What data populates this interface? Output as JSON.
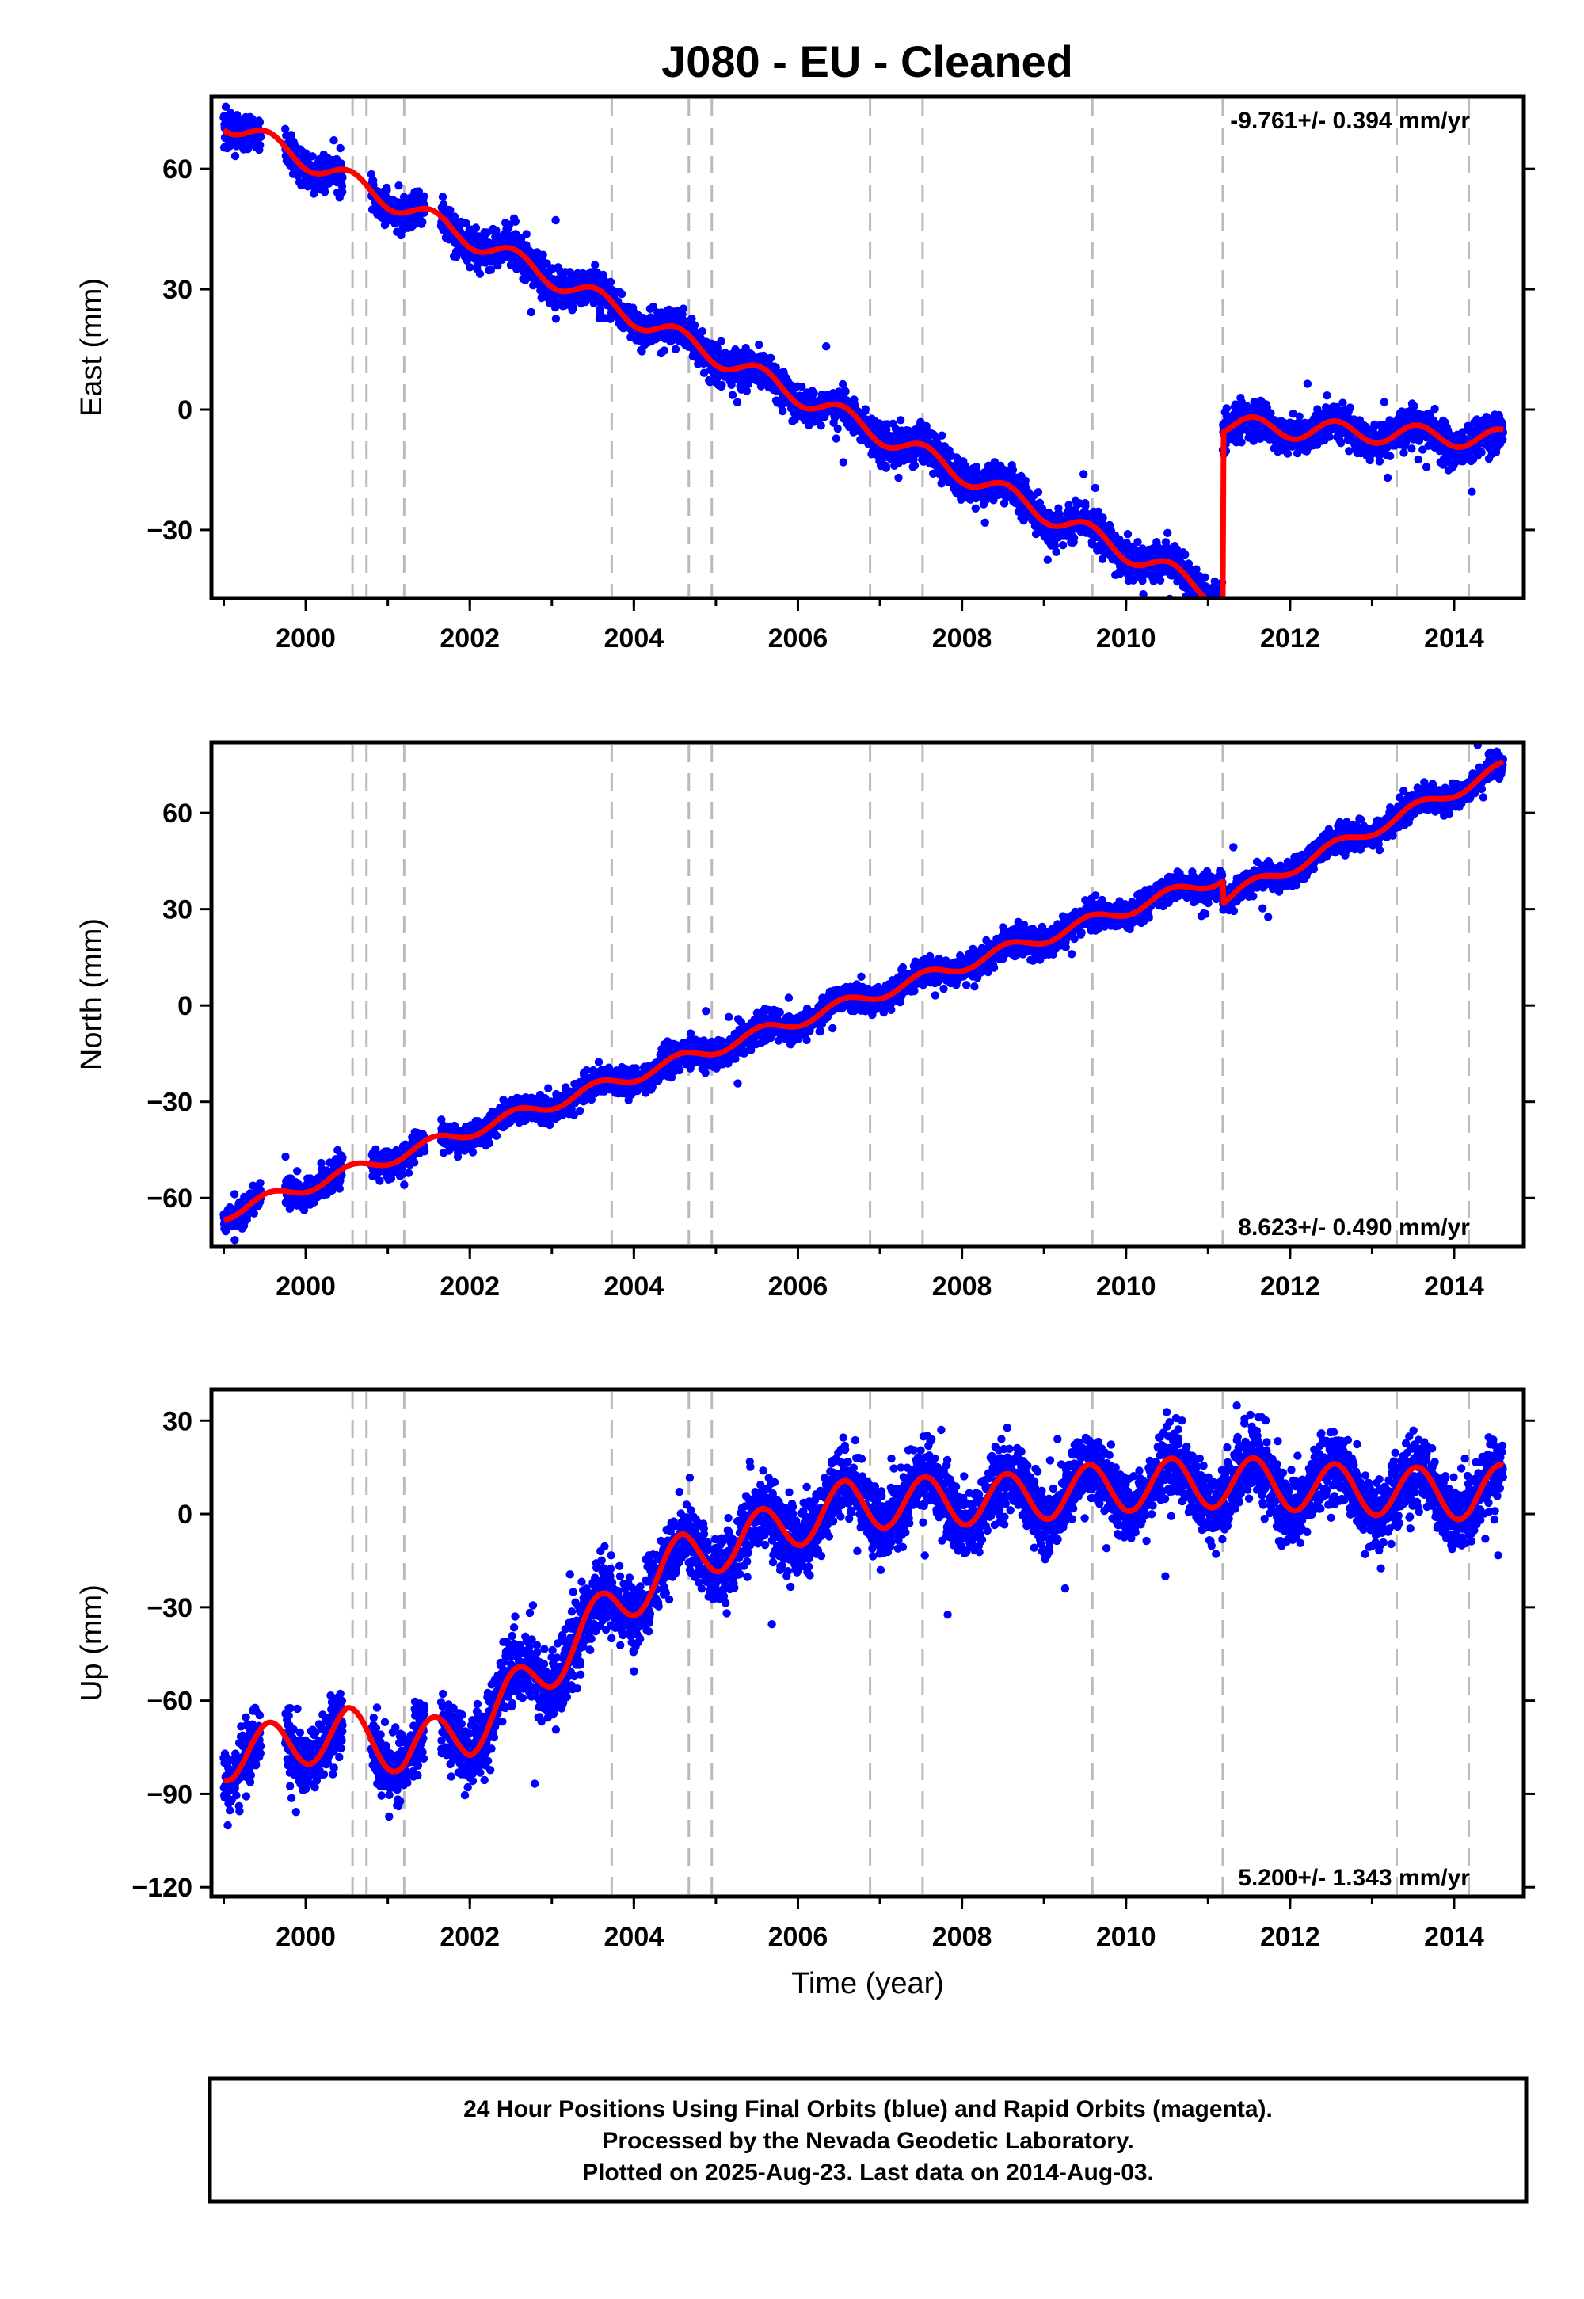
{
  "title": "J080  - EU - Cleaned",
  "chart_data": [
    {
      "type": "scatter",
      "component": "east",
      "ylabel": "East (mm)",
      "xlim": [
        1998.85,
        2014.85
      ],
      "ylim": [
        -47,
        78
      ],
      "yticks": [
        -30,
        0,
        30,
        60
      ],
      "xticks": [
        2000,
        2002,
        2004,
        2006,
        2008,
        2010,
        2012,
        2014
      ],
      "rate_text": "-9.761+/- 0.394 mm/yr",
      "rate_position": "top-right",
      "equipment_changes": [
        2000.57,
        2000.74,
        2001.2,
        2003.73,
        2004.67,
        2004.95,
        2006.88,
        2007.52,
        2009.59,
        2011.18,
        2013.3,
        2014.18
      ],
      "fit": {
        "segments": [
          {
            "x0": 1999.0,
            "x1": 2011.18,
            "intercept": 72,
            "rate": -9.761
          },
          {
            "x0": 2011.18,
            "x1": 2014.6,
            "intercept": -4,
            "rate": -1.0
          }
        ],
        "annual_amplitude": 2.5
      },
      "data_segments": [
        [
          1999.0,
          1999.45
        ],
        [
          1999.75,
          2000.45
        ],
        [
          2000.8,
          2001.45
        ],
        [
          2001.65,
          2014.6
        ]
      ],
      "noise_mm": 2.2,
      "color_points": "#0000ff",
      "color_fit": "#ff0000"
    },
    {
      "type": "scatter",
      "component": "north",
      "ylabel": "North (mm)",
      "xlim": [
        1998.85,
        2014.85
      ],
      "ylim": [
        -75,
        82
      ],
      "yticks": [
        -60,
        -30,
        0,
        30,
        60
      ],
      "xticks": [
        2000,
        2002,
        2004,
        2006,
        2008,
        2010,
        2012,
        2014
      ],
      "rate_text": "8.623+/- 0.490 mm/yr",
      "rate_position": "bottom-right",
      "equipment_changes": [
        2000.57,
        2000.74,
        2001.2,
        2003.73,
        2004.67,
        2004.95,
        2006.88,
        2007.52,
        2009.59,
        2011.18,
        2013.3,
        2014.18
      ],
      "fit": {
        "segments": [
          {
            "x0": 1999.0,
            "x1": 2011.18,
            "intercept": -65,
            "rate": 8.623
          },
          {
            "x0": 2011.18,
            "x1": 2014.6,
            "intercept": 33,
            "rate": 12.0
          }
        ],
        "annual_amplitude": 2.0
      },
      "data_segments": [
        [
          1999.0,
          1999.45
        ],
        [
          1999.75,
          2000.45
        ],
        [
          2000.8,
          2001.45
        ],
        [
          2001.65,
          2014.6
        ]
      ],
      "noise_mm": 2.0,
      "color_points": "#0000ff",
      "color_fit": "#ff0000"
    },
    {
      "type": "scatter",
      "component": "up",
      "ylabel": "Up (mm)",
      "xlabel": "Time (year)",
      "xlim": [
        1998.85,
        2014.85
      ],
      "ylim": [
        -123,
        40
      ],
      "yticks": [
        -120,
        -90,
        -60,
        -30,
        0,
        30
      ],
      "xticks": [
        2000,
        2002,
        2004,
        2006,
        2008,
        2010,
        2012,
        2014
      ],
      "rate_text": "5.200+/- 1.343 mm/yr",
      "rate_position": "bottom-right",
      "equipment_changes": [
        2000.57,
        2000.74,
        2001.2,
        2003.73,
        2004.67,
        2004.95,
        2006.88,
        2007.52,
        2009.59,
        2011.18,
        2013.3,
        2014.18
      ],
      "fit": {
        "anchors": [
          [
            1999.0,
            -78
          ],
          [
            2000.5,
            -70
          ],
          [
            2001.2,
            -76
          ],
          [
            2002.0,
            -70
          ],
          [
            2003.0,
            -48
          ],
          [
            2003.73,
            -30
          ],
          [
            2004.6,
            -14
          ],
          [
            2005.6,
            -6
          ],
          [
            2006.6,
            3
          ],
          [
            2007.6,
            4
          ],
          [
            2008.6,
            5
          ],
          [
            2009.6,
            8
          ],
          [
            2010.6,
            10
          ],
          [
            2011.6,
            10
          ],
          [
            2012.6,
            8
          ],
          [
            2013.6,
            7
          ],
          [
            2014.2,
            6
          ],
          [
            2014.6,
            8
          ]
        ],
        "annual_amplitude": 8.0
      },
      "data_segments": [
        [
          1999.0,
          1999.45
        ],
        [
          1999.75,
          2000.45
        ],
        [
          2000.8,
          2001.45
        ],
        [
          2001.65,
          2014.6
        ]
      ],
      "noise_mm": 5.5,
      "color_points": "#0000ff",
      "color_fit": "#ff0000"
    }
  ],
  "footer": {
    "line1": "24 Hour Positions Using Final Orbits (blue) and Rapid Orbits (magenta).",
    "line2": "Processed by the Nevada Geodetic Laboratory.",
    "line3": "Plotted on 2025-Aug-23. Last data on 2014-Aug-03."
  }
}
